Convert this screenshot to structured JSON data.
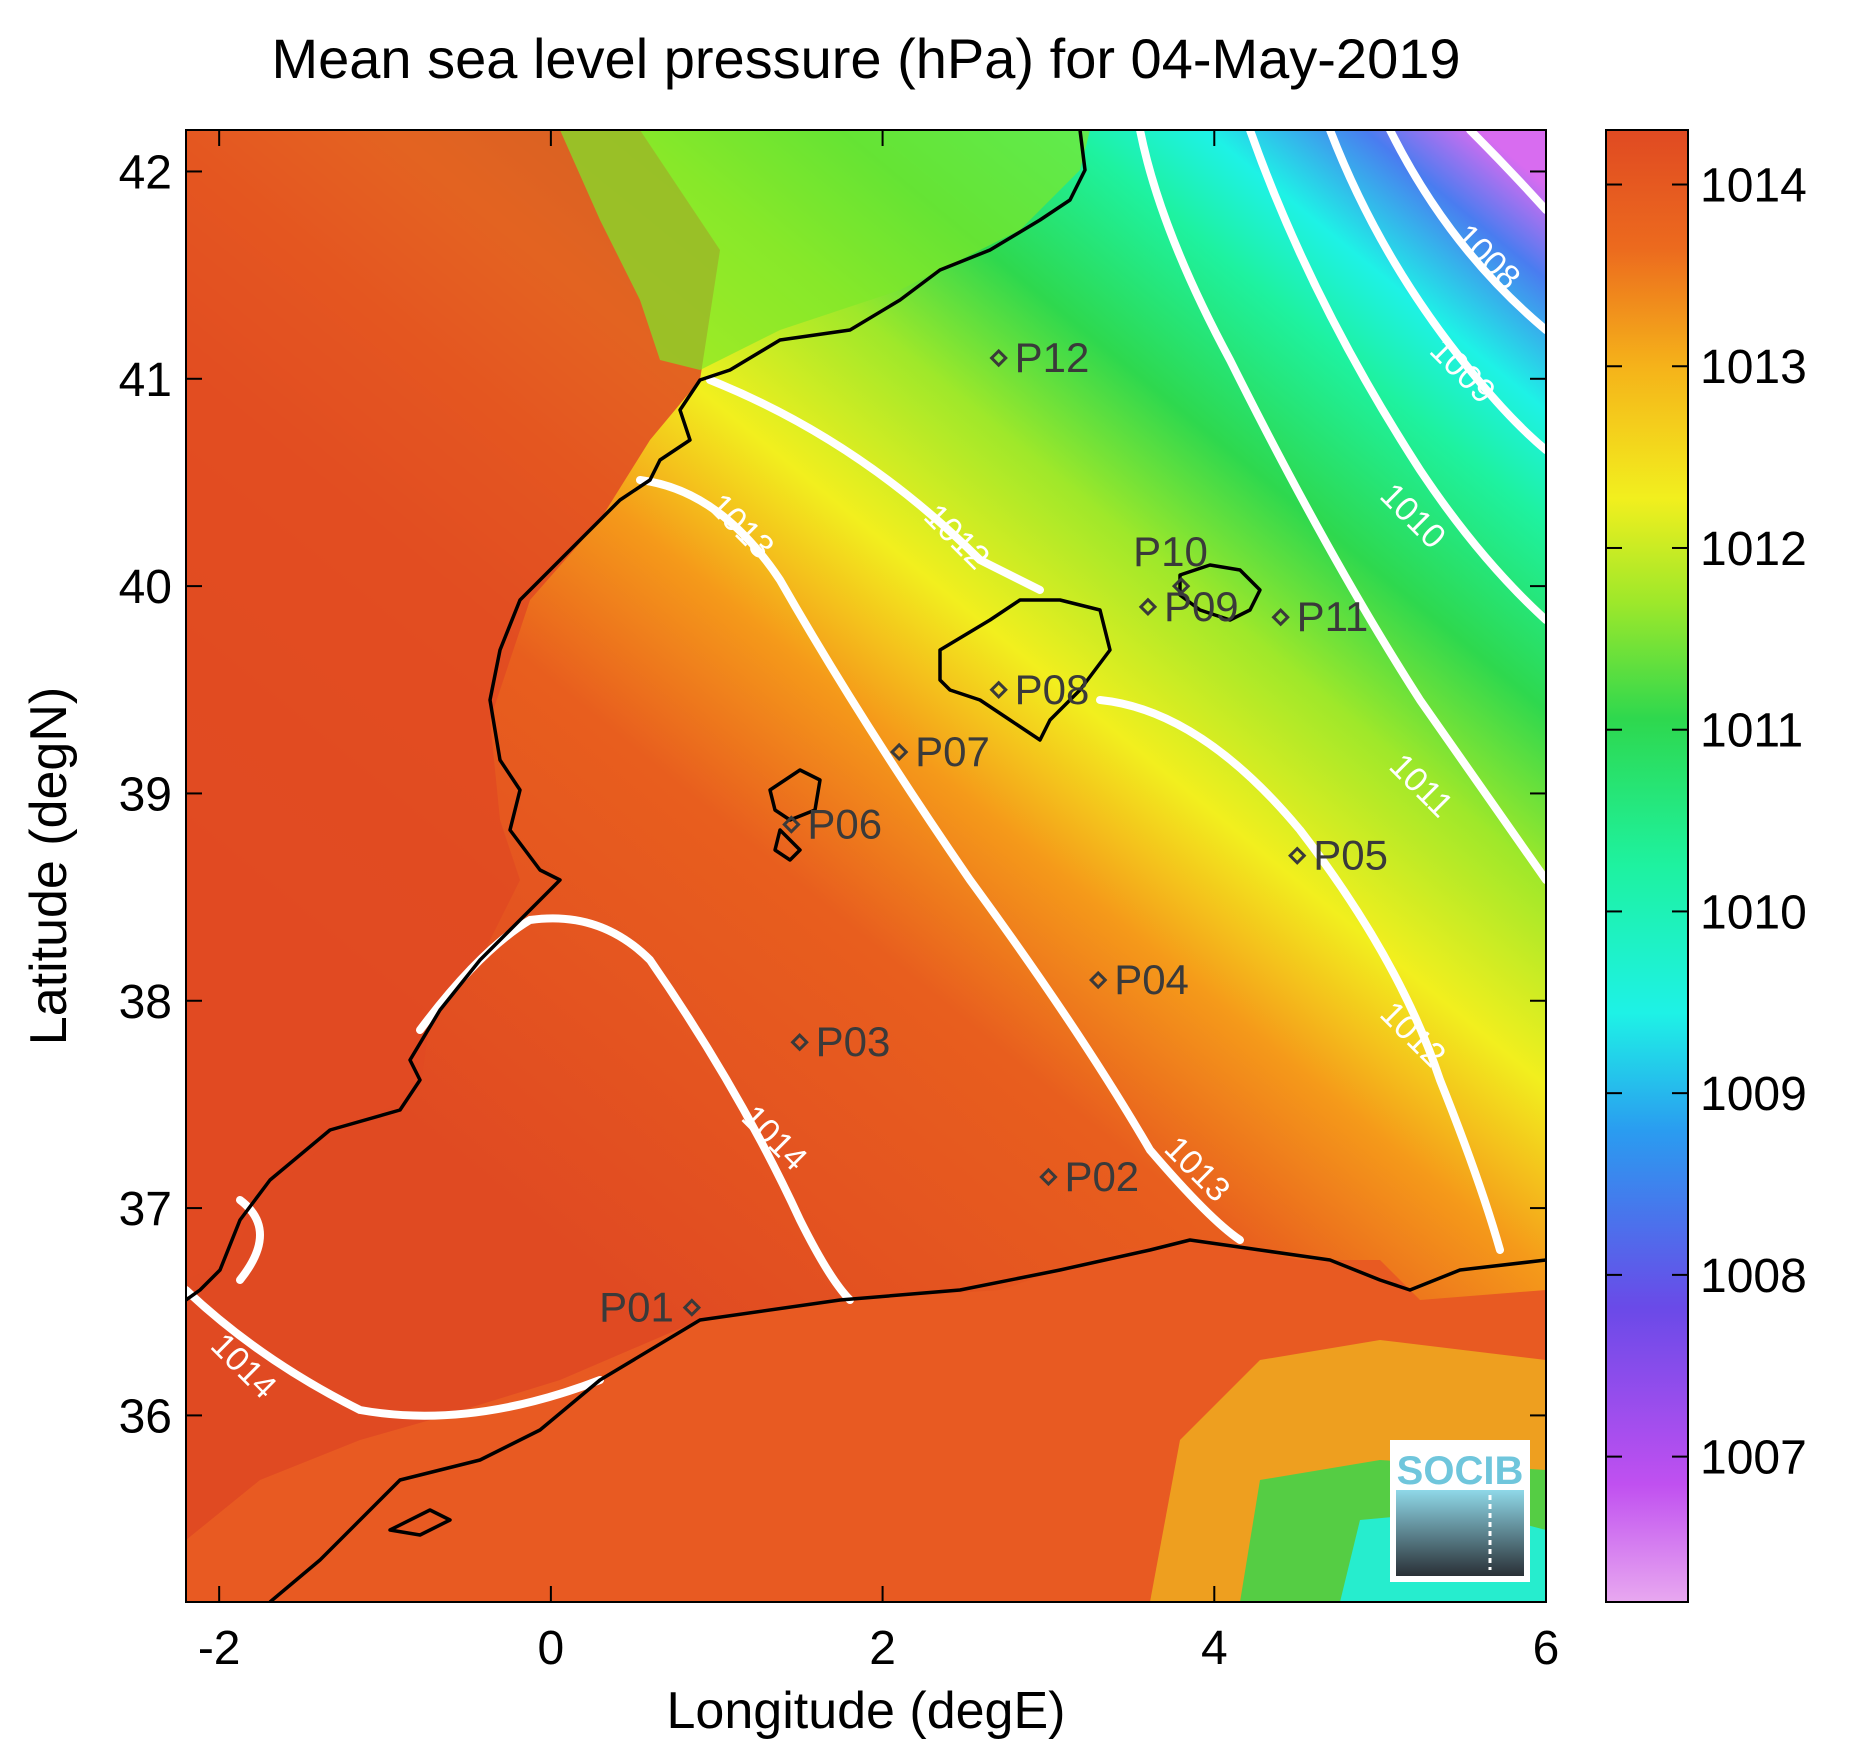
{
  "title": "Mean sea level pressure (hPa) for 04-May-2019",
  "xlabel": "Longitude (degE)",
  "ylabel": "Latitude (degN)",
  "xlim": [
    -2.2,
    6.0
  ],
  "ylim": [
    35.1,
    42.2
  ],
  "xticks": [
    -2,
    0,
    2,
    4,
    6
  ],
  "yticks": [
    36,
    37,
    38,
    39,
    40,
    41,
    42
  ],
  "colorbar": {
    "range": [
      1006.2,
      1014.3
    ],
    "ticks": [
      1007,
      1008,
      1009,
      1010,
      1011,
      1012,
      1013,
      1014
    ]
  },
  "stations": [
    {
      "name": "P01",
      "lon": 0.85,
      "lat": 36.52
    },
    {
      "name": "P02",
      "lon": 3.0,
      "lat": 37.15
    },
    {
      "name": "P03",
      "lon": 1.5,
      "lat": 37.8
    },
    {
      "name": "P04",
      "lon": 3.3,
      "lat": 38.1
    },
    {
      "name": "P05",
      "lon": 4.5,
      "lat": 38.7
    },
    {
      "name": "P06",
      "lon": 1.45,
      "lat": 38.85
    },
    {
      "name": "P07",
      "lon": 2.1,
      "lat": 39.2
    },
    {
      "name": "P08",
      "lon": 2.7,
      "lat": 39.5
    },
    {
      "name": "P09",
      "lon": 3.6,
      "lat": 39.9
    },
    {
      "name": "P10",
      "lon": 3.8,
      "lat": 40.0
    },
    {
      "name": "P11",
      "lon": 4.4,
      "lat": 39.85
    },
    {
      "name": "P12",
      "lon": 2.7,
      "lat": 41.1
    }
  ],
  "contours": [
    {
      "label": "1008",
      "lon": 5.6,
      "lat": 41.55
    },
    {
      "label": "1009",
      "lon": 5.45,
      "lat": 41.0
    },
    {
      "label": "1010",
      "lon": 5.15,
      "lat": 40.3
    },
    {
      "label": "1011",
      "lon": 5.2,
      "lat": 39.0
    },
    {
      "label": "1012",
      "lon": 2.4,
      "lat": 40.2
    },
    {
      "label": "1012",
      "lon": 5.15,
      "lat": 37.8
    },
    {
      "label": "1013",
      "lon": 1.1,
      "lat": 40.25
    },
    {
      "label": "1013",
      "lon": 3.85,
      "lat": 37.15
    },
    {
      "label": "1014",
      "lon": 1.3,
      "lat": 37.3
    },
    {
      "label": "1014",
      "lon": -1.9,
      "lat": 36.2
    }
  ],
  "logo": "SOCIB",
  "colors": {
    "low": "#d86cf0",
    "purple": "#7a45e6",
    "cyan": "#1ef2e6",
    "green": "#2ed84e",
    "yellow": "#f2ef1e",
    "orange": "#f59a1a",
    "high": "#e04a22",
    "contour": "#ffffff",
    "coast": "#000000"
  }
}
